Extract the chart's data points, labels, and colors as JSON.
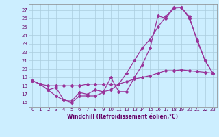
{
  "background_color": "#cceeff",
  "grid_color": "#aaccdd",
  "line_color": "#993399",
  "marker": "D",
  "markersize": 2.0,
  "linewidth": 0.9,
  "xlabel": "Windchill (Refroidissement éolien,°C)",
  "xlabel_fontsize": 5.5,
  "tick_fontsize": 5.0,
  "ytick_vals": [
    16,
    17,
    18,
    19,
    20,
    21,
    22,
    23,
    24,
    25,
    26,
    27
  ],
  "xtick_vals": [
    0,
    1,
    2,
    3,
    4,
    5,
    6,
    7,
    8,
    9,
    10,
    11,
    12,
    13,
    14,
    15,
    16,
    17,
    18,
    19,
    20,
    21,
    22,
    23
  ],
  "ylim": [
    15.5,
    27.7
  ],
  "xlim": [
    -0.5,
    23.5
  ],
  "series1_x": [
    0,
    1,
    2,
    3,
    4,
    5,
    6,
    7,
    8,
    9,
    10,
    11,
    12,
    13,
    14,
    15,
    16,
    17,
    18,
    19,
    20,
    21,
    22,
    23
  ],
  "series1_y": [
    18.6,
    18.2,
    17.5,
    16.8,
    16.3,
    16.0,
    16.8,
    16.8,
    16.8,
    17.2,
    19.0,
    17.3,
    17.3,
    19.0,
    20.5,
    22.5,
    26.3,
    26.0,
    27.2,
    27.3,
    26.2,
    23.3,
    21.0,
    19.5
  ],
  "series2_x": [
    0,
    1,
    2,
    3,
    4,
    5,
    6,
    7,
    8,
    9,
    10,
    11,
    12,
    13,
    14,
    15,
    16,
    17,
    18,
    19,
    20,
    21,
    22,
    23
  ],
  "series2_y": [
    18.6,
    18.2,
    17.5,
    17.8,
    16.3,
    16.2,
    17.2,
    17.0,
    17.5,
    17.3,
    17.5,
    18.2,
    19.5,
    21.0,
    22.5,
    23.5,
    25.0,
    26.2,
    27.3,
    27.3,
    26.0,
    23.5,
    21.0,
    19.5
  ],
  "series3_x": [
    0,
    1,
    2,
    3,
    4,
    5,
    6,
    7,
    8,
    9,
    10,
    11,
    12,
    13,
    14,
    15,
    16,
    17,
    18,
    19,
    20,
    21,
    22,
    23
  ],
  "series3_y": [
    18.6,
    18.2,
    18.0,
    18.0,
    18.0,
    18.0,
    18.0,
    18.2,
    18.2,
    18.2,
    18.2,
    18.2,
    18.5,
    18.8,
    19.0,
    19.2,
    19.5,
    19.8,
    19.8,
    19.9,
    19.8,
    19.7,
    19.6,
    19.5
  ]
}
